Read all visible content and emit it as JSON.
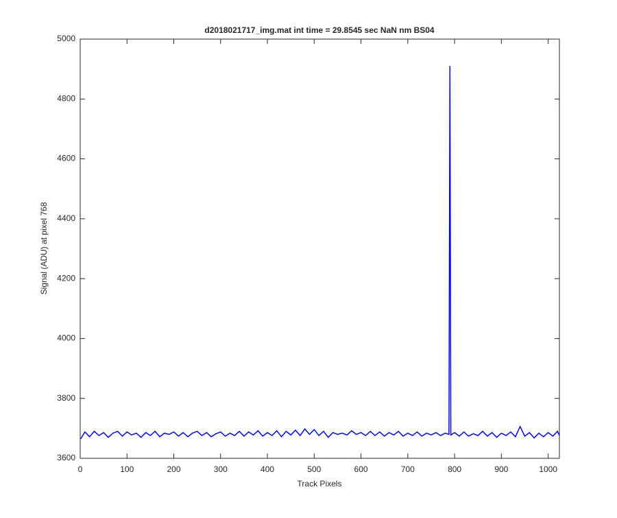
{
  "chart_data": {
    "type": "line",
    "title": "d2018021717_img.mat int time = 29.8545 sec  NaN nm BS04",
    "x_label": "Track Pixels",
    "y_label": "Signal (ADU) at pixel 768",
    "x": [
      1,
      10,
      20,
      30,
      40,
      50,
      60,
      70,
      80,
      90,
      100,
      110,
      120,
      130,
      140,
      150,
      160,
      170,
      180,
      190,
      200,
      210,
      220,
      230,
      240,
      250,
      260,
      270,
      280,
      290,
      300,
      310,
      320,
      330,
      340,
      350,
      360,
      370,
      380,
      390,
      400,
      410,
      420,
      430,
      440,
      450,
      460,
      470,
      480,
      490,
      500,
      510,
      520,
      530,
      540,
      550,
      560,
      570,
      580,
      590,
      600,
      610,
      620,
      630,
      640,
      650,
      660,
      670,
      680,
      690,
      700,
      710,
      720,
      730,
      740,
      750,
      760,
      770,
      780,
      788,
      790,
      792,
      800,
      810,
      820,
      830,
      840,
      850,
      860,
      870,
      880,
      890,
      900,
      910,
      920,
      930,
      940,
      950,
      960,
      970,
      980,
      990,
      1000,
      1010,
      1020,
      1024
    ],
    "series": [
      {
        "color": "#0000ff",
        "values": [
          3665,
          3688,
          3672,
          3690,
          3676,
          3686,
          3670,
          3684,
          3690,
          3674,
          3688,
          3678,
          3684,
          3670,
          3686,
          3676,
          3690,
          3672,
          3684,
          3680,
          3688,
          3674,
          3686,
          3672,
          3684,
          3690,
          3676,
          3686,
          3672,
          3682,
          3688,
          3674,
          3684,
          3676,
          3690,
          3674,
          3688,
          3678,
          3692,
          3674,
          3686,
          3676,
          3692,
          3672,
          3690,
          3678,
          3694,
          3676,
          3698,
          3680,
          3696,
          3676,
          3690,
          3670,
          3686,
          3680,
          3684,
          3678,
          3692,
          3680,
          3686,
          3676,
          3690,
          3676,
          3688,
          3674,
          3686,
          3678,
          3690,
          3674,
          3684,
          3676,
          3688,
          3674,
          3684,
          3678,
          3686,
          3676,
          3684,
          3680,
          4910,
          3678,
          3686,
          3674,
          3688,
          3674,
          3682,
          3676,
          3690,
          3674,
          3686,
          3670,
          3684,
          3676,
          3688,
          3672,
          3706,
          3674,
          3686,
          3668,
          3684,
          3672,
          3686,
          3674,
          3690,
          3676
        ]
      }
    ],
    "xlim": [
      0,
      1024
    ],
    "xticks": [
      0,
      100,
      200,
      300,
      400,
      500,
      600,
      700,
      800,
      900,
      1000
    ],
    "ylim": [
      3600,
      5000
    ],
    "yticks": [
      3600,
      3800,
      4000,
      4200,
      4400,
      4600,
      4800,
      5000
    ]
  }
}
